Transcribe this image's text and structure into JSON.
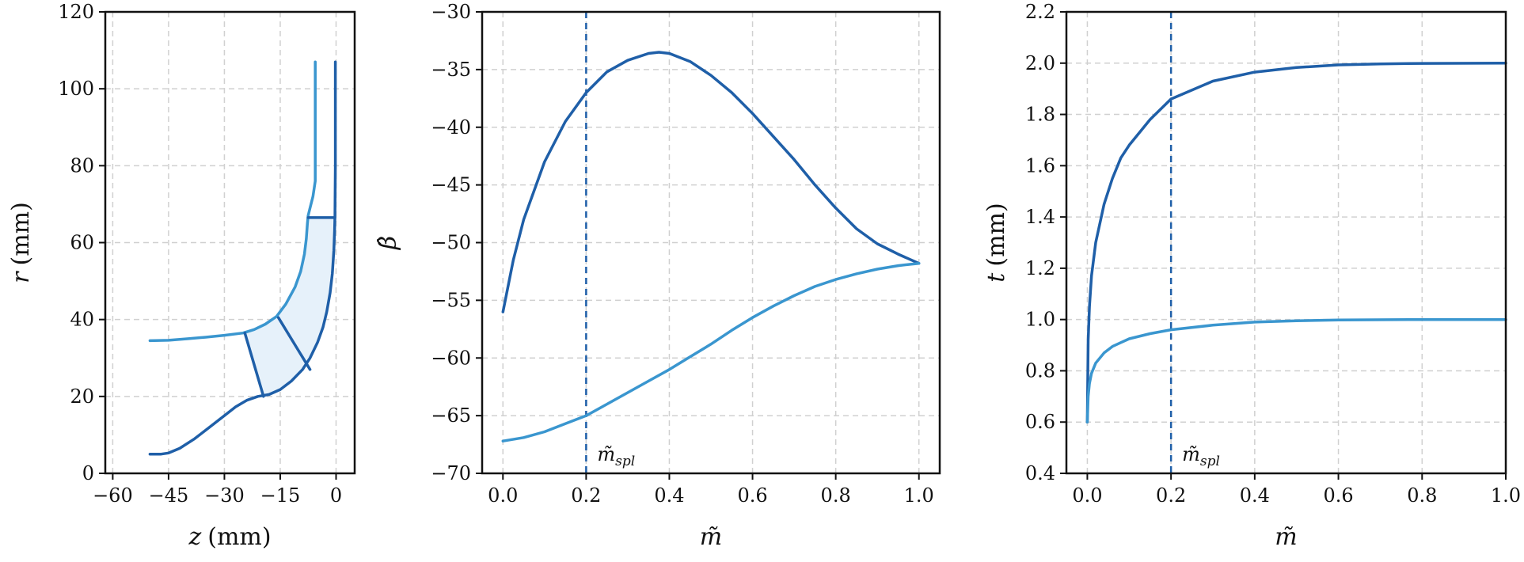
{
  "chart_data": [
    {
      "type": "line",
      "title": "",
      "xlabel": "z",
      "xlabel_unit": "(mm)",
      "ylabel": "r",
      "ylabel_unit": "(mm)",
      "xlim": [
        -62,
        5
      ],
      "ylim": [
        0,
        120
      ],
      "xticks": [
        -60,
        -45,
        -30,
        -15,
        0
      ],
      "yticks": [
        0,
        20,
        40,
        60,
        80,
        100,
        120
      ],
      "xtick_labels": [
        "−60",
        "−45",
        "−30",
        "−15",
        "0"
      ],
      "ytick_labels": [
        "0",
        "20",
        "40",
        "60",
        "80",
        "100",
        "120"
      ],
      "grid": true,
      "colors": {
        "hub": "#1f5fa8",
        "shroud": "#3a96cf",
        "fill": "#e6f1fa"
      },
      "series": [
        {
          "key": "hub",
          "color": "#1f5fa8",
          "points": [
            [
              -50,
              5
            ],
            [
              -47,
              5
            ],
            [
              -45,
              5.3
            ],
            [
              -42,
              6.5
            ],
            [
              -38,
              9
            ],
            [
              -34,
              12
            ],
            [
              -30,
              15
            ],
            [
              -27,
              17.3
            ],
            [
              -24,
              19
            ],
            [
              -21,
              20
            ],
            [
              -18,
              20.5
            ],
            [
              -15,
              21.8
            ],
            [
              -12,
              24
            ],
            [
              -9,
              27
            ],
            [
              -7,
              30
            ],
            [
              -5,
              34
            ],
            [
              -3.5,
              38
            ],
            [
              -2.5,
              42
            ],
            [
              -1.6,
              47
            ],
            [
              -1,
              52
            ],
            [
              -0.6,
              58
            ],
            [
              -0.4,
              63
            ],
            [
              -0.3,
              67
            ],
            [
              -0.2,
              80
            ],
            [
              -0.2,
              107
            ]
          ]
        },
        {
          "key": "shroud",
          "color": "#3a96cf",
          "points": [
            [
              -50,
              34.5
            ],
            [
              -45,
              34.6
            ],
            [
              -40,
              35
            ],
            [
              -35,
              35.4
            ],
            [
              -30,
              35.9
            ],
            [
              -25,
              36.5
            ],
            [
              -22,
              37.4
            ],
            [
              -19,
              38.8
            ],
            [
              -16,
              40.8
            ],
            [
              -13.5,
              44
            ],
            [
              -11,
              48.5
            ],
            [
              -9.5,
              52.5
            ],
            [
              -8.5,
              57
            ],
            [
              -8,
              61
            ],
            [
              -7.7,
              65
            ],
            [
              -7.5,
              67
            ],
            [
              -7,
              69
            ],
            [
              -6.2,
              72
            ],
            [
              -5.6,
              76
            ],
            [
              -5.6,
              107
            ]
          ]
        },
        {
          "key": "blade-hub",
          "color": "#1f5fa8",
          "points": [
            [
              -7.5,
              66.5
            ],
            [
              -0.3,
              66.5
            ]
          ]
        },
        {
          "key": "blade-mid",
          "color": "#1f5fa8",
          "points": [
            [
              -15.5,
              40.5
            ],
            [
              -7,
              27
            ]
          ]
        },
        {
          "key": "blade-le",
          "color": "#1f5fa8",
          "points": [
            [
              -24.5,
              36.5
            ],
            [
              -19.5,
              20
            ]
          ]
        }
      ],
      "shaded_region": {
        "upper": [
          [
            -24.5,
            36.5
          ],
          [
            -22,
            37.4
          ],
          [
            -19,
            38.8
          ],
          [
            -16,
            40.8
          ],
          [
            -13.5,
            44
          ],
          [
            -11,
            48.5
          ],
          [
            -9.5,
            52.5
          ],
          [
            -8.5,
            57
          ],
          [
            -8,
            61
          ],
          [
            -7.7,
            65
          ],
          [
            -7.5,
            66.5
          ]
        ],
        "lower": [
          [
            -0.3,
            66.5
          ],
          [
            -0.4,
            63
          ],
          [
            -0.6,
            58
          ],
          [
            -1,
            52
          ],
          [
            -1.6,
            47
          ],
          [
            -2.5,
            42
          ],
          [
            -3.5,
            38
          ],
          [
            -5,
            34
          ],
          [
            -7,
            30
          ],
          [
            -9,
            27
          ],
          [
            -12,
            24
          ],
          [
            -15,
            21.8
          ],
          [
            -18,
            20.5
          ],
          [
            -19.5,
            20
          ]
        ]
      }
    },
    {
      "type": "line",
      "title": "",
      "xlabel": "m̃",
      "ylabel": "β̂",
      "xlim": [
        -0.05,
        1.05
      ],
      "ylim": [
        -70,
        -30
      ],
      "xticks": [
        0.0,
        0.2,
        0.4,
        0.6,
        0.8,
        1.0
      ],
      "yticks": [
        -70,
        -65,
        -60,
        -55,
        -50,
        -45,
        -40,
        -35,
        -30
      ],
      "xtick_labels": [
        "0.0",
        "0.2",
        "0.4",
        "0.6",
        "0.8",
        "1.0"
      ],
      "ytick_labels": [
        "−70",
        "−65",
        "−60",
        "−55",
        "−50",
        "−45",
        "−40",
        "−35",
        "−30"
      ],
      "grid": true,
      "vline": {
        "x": 0.2,
        "label_main": "m̃",
        "label_sub": "spl",
        "color": "#1f5fa8"
      },
      "series": [
        {
          "key": "hub",
          "color": "#1f5fa8",
          "points": [
            [
              0.0,
              -56
            ],
            [
              0.025,
              -51.5
            ],
            [
              0.05,
              -48
            ],
            [
              0.1,
              -43
            ],
            [
              0.15,
              -39.5
            ],
            [
              0.2,
              -37
            ],
            [
              0.25,
              -35.2
            ],
            [
              0.3,
              -34.2
            ],
            [
              0.35,
              -33.6
            ],
            [
              0.375,
              -33.5
            ],
            [
              0.4,
              -33.6
            ],
            [
              0.45,
              -34.3
            ],
            [
              0.5,
              -35.5
            ],
            [
              0.55,
              -37
            ],
            [
              0.6,
              -38.8
            ],
            [
              0.65,
              -40.8
            ],
            [
              0.7,
              -42.8
            ],
            [
              0.75,
              -45
            ],
            [
              0.8,
              -47
            ],
            [
              0.85,
              -48.8
            ],
            [
              0.9,
              -50.1
            ],
            [
              0.95,
              -51
            ],
            [
              1.0,
              -51.8
            ]
          ]
        },
        {
          "key": "shroud",
          "color": "#3a96cf",
          "points": [
            [
              0.0,
              -67.2
            ],
            [
              0.05,
              -66.9
            ],
            [
              0.1,
              -66.4
            ],
            [
              0.15,
              -65.7
            ],
            [
              0.2,
              -65
            ],
            [
              0.25,
              -64
            ],
            [
              0.3,
              -63
            ],
            [
              0.35,
              -62
            ],
            [
              0.4,
              -61
            ],
            [
              0.45,
              -59.9
            ],
            [
              0.5,
              -58.8
            ],
            [
              0.55,
              -57.6
            ],
            [
              0.6,
              -56.5
            ],
            [
              0.65,
              -55.5
            ],
            [
              0.7,
              -54.6
            ],
            [
              0.75,
              -53.8
            ],
            [
              0.8,
              -53.2
            ],
            [
              0.85,
              -52.7
            ],
            [
              0.9,
              -52.3
            ],
            [
              0.95,
              -52
            ],
            [
              1.0,
              -51.8
            ]
          ]
        }
      ]
    },
    {
      "type": "line",
      "title": "",
      "xlabel": "m̃",
      "ylabel": "t",
      "ylabel_unit": "(mm)",
      "xlim": [
        -0.05,
        1.0
      ],
      "ylim": [
        0.4,
        2.2
      ],
      "xticks": [
        0.0,
        0.2,
        0.4,
        0.6,
        0.8,
        1.0
      ],
      "yticks": [
        0.4,
        0.6,
        0.8,
        1.0,
        1.2,
        1.4,
        1.6,
        1.8,
        2.0,
        2.2
      ],
      "xtick_labels": [
        "0.0",
        "0.2",
        "0.4",
        "0.6",
        "0.8",
        "1.0"
      ],
      "ytick_labels": [
        "0.4",
        "0.6",
        "0.8",
        "1.0",
        "1.2",
        "1.4",
        "1.6",
        "1.8",
        "2.0",
        "2.2"
      ],
      "grid": true,
      "vline": {
        "x": 0.2,
        "label_main": "m̃",
        "label_sub": "spl",
        "color": "#1f5fa8"
      },
      "series": [
        {
          "key": "hub",
          "color": "#1f5fa8",
          "points": [
            [
              0.0,
              0.6
            ],
            [
              0.002,
              0.92
            ],
            [
              0.005,
              1.05
            ],
            [
              0.01,
              1.17
            ],
            [
              0.02,
              1.3
            ],
            [
              0.04,
              1.45
            ],
            [
              0.06,
              1.55
            ],
            [
              0.08,
              1.63
            ],
            [
              0.1,
              1.68
            ],
            [
              0.15,
              1.78
            ],
            [
              0.2,
              1.86
            ],
            [
              0.3,
              1.93
            ],
            [
              0.4,
              1.965
            ],
            [
              0.5,
              1.983
            ],
            [
              0.6,
              1.993
            ],
            [
              0.7,
              1.997
            ],
            [
              0.8,
              1.999
            ],
            [
              1.0,
              2.0
            ]
          ]
        },
        {
          "key": "shroud",
          "color": "#3a96cf",
          "points": [
            [
              0.0,
              0.6
            ],
            [
              0.002,
              0.7
            ],
            [
              0.005,
              0.75
            ],
            [
              0.01,
              0.79
            ],
            [
              0.02,
              0.83
            ],
            [
              0.04,
              0.87
            ],
            [
              0.06,
              0.895
            ],
            [
              0.08,
              0.91
            ],
            [
              0.1,
              0.925
            ],
            [
              0.15,
              0.945
            ],
            [
              0.2,
              0.96
            ],
            [
              0.3,
              0.978
            ],
            [
              0.4,
              0.99
            ],
            [
              0.5,
              0.995
            ],
            [
              0.6,
              0.998
            ],
            [
              0.8,
              1.0
            ],
            [
              1.0,
              1.0
            ]
          ]
        }
      ]
    }
  ]
}
